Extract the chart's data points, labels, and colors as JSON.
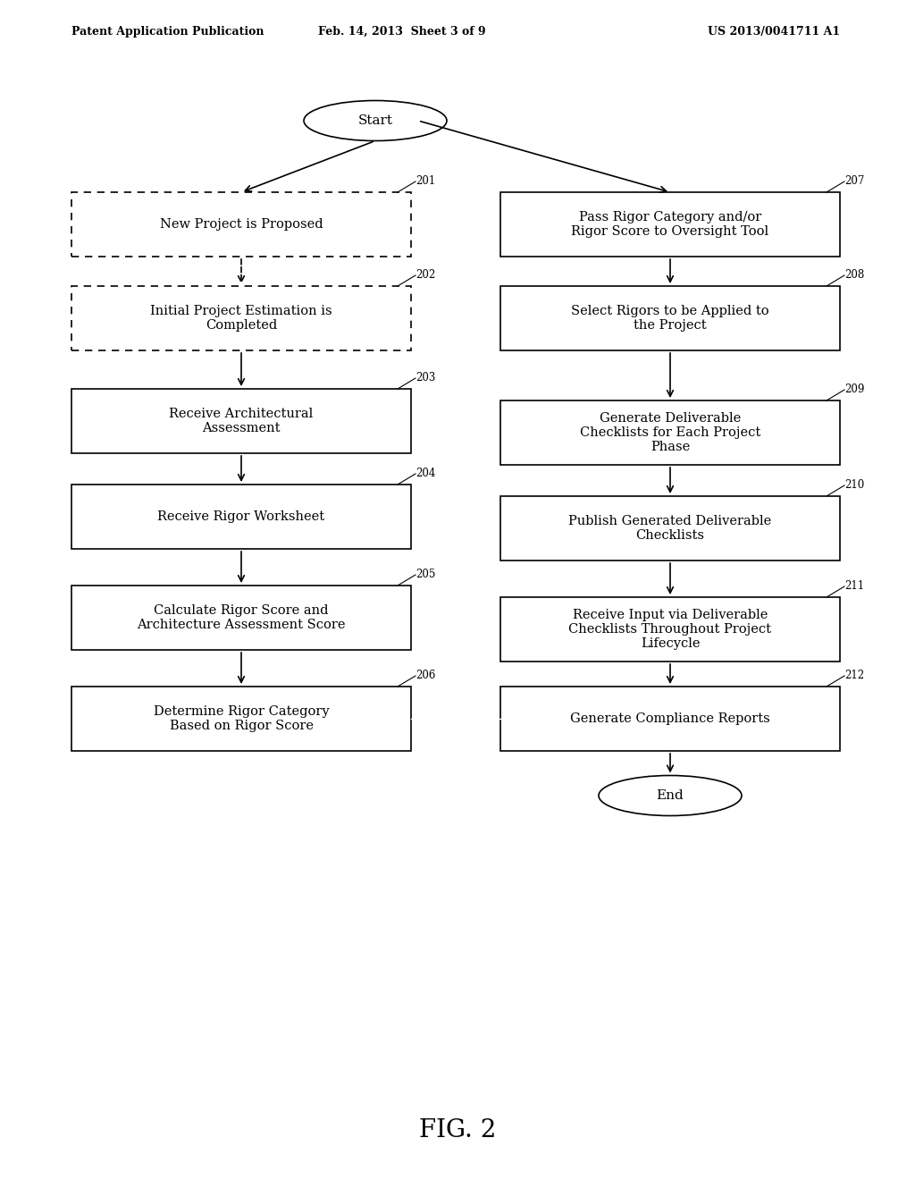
{
  "bg_color": "#ffffff",
  "header_left": "Patent Application Publication",
  "header_center": "Feb. 14, 2013  Sheet 3 of 9",
  "header_right": "US 2013/0041711 A1",
  "figure_label": "FIG. 2",
  "start_label": "Start",
  "end_label": "End",
  "left_boxes": [
    {
      "id": "201",
      "text": "New Project is Proposed",
      "dashed": true
    },
    {
      "id": "202",
      "text": "Initial Project Estimation is\nCompleted",
      "dashed": true
    },
    {
      "id": "203",
      "text": "Receive Architectural\nAssessment",
      "dashed": false
    },
    {
      "id": "204",
      "text": "Receive Rigor Worksheet",
      "dashed": false
    },
    {
      "id": "205",
      "text": "Calculate Rigor Score and\nArchitecture Assessment Score",
      "dashed": false
    },
    {
      "id": "206",
      "text": "Determine Rigor Category\nBased on Rigor Score",
      "dashed": false
    }
  ],
  "right_boxes": [
    {
      "id": "207",
      "text": "Pass Rigor Category and/or\nRigor Score to Oversight Tool",
      "dashed": false
    },
    {
      "id": "208",
      "text": "Select Rigors to be Applied to\nthe Project",
      "dashed": false
    },
    {
      "id": "209",
      "text": "Generate Deliverable\nChecklists for Each Project\nPhase",
      "dashed": false
    },
    {
      "id": "210",
      "text": "Publish Generated Deliverable\nChecklists",
      "dashed": false
    },
    {
      "id": "211",
      "text": "Receive Input via Deliverable\nChecklists Throughout Project\nLifecycle",
      "dashed": false
    },
    {
      "id": "212",
      "text": "Generate Compliance Reports",
      "dashed": false
    }
  ]
}
